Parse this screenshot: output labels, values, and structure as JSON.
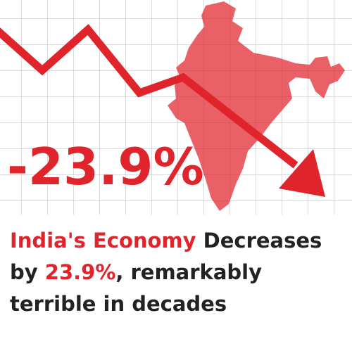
{
  "graphic": {
    "big_label": "-23.9%",
    "accent_color": "#e0242b",
    "text_color": "#222222"
  },
  "headline": {
    "lines": [
      [
        {
          "text": "India's Economy",
          "accent": true
        },
        {
          "text": " Decreases",
          "accent": false
        }
      ],
      [
        {
          "text": "by ",
          "accent": false
        },
        {
          "text": "23.9%",
          "accent": true
        },
        {
          "text": ", remarkably",
          "accent": false
        }
      ],
      [
        {
          "text": "terrible in decades",
          "accent": false
        }
      ]
    ]
  }
}
